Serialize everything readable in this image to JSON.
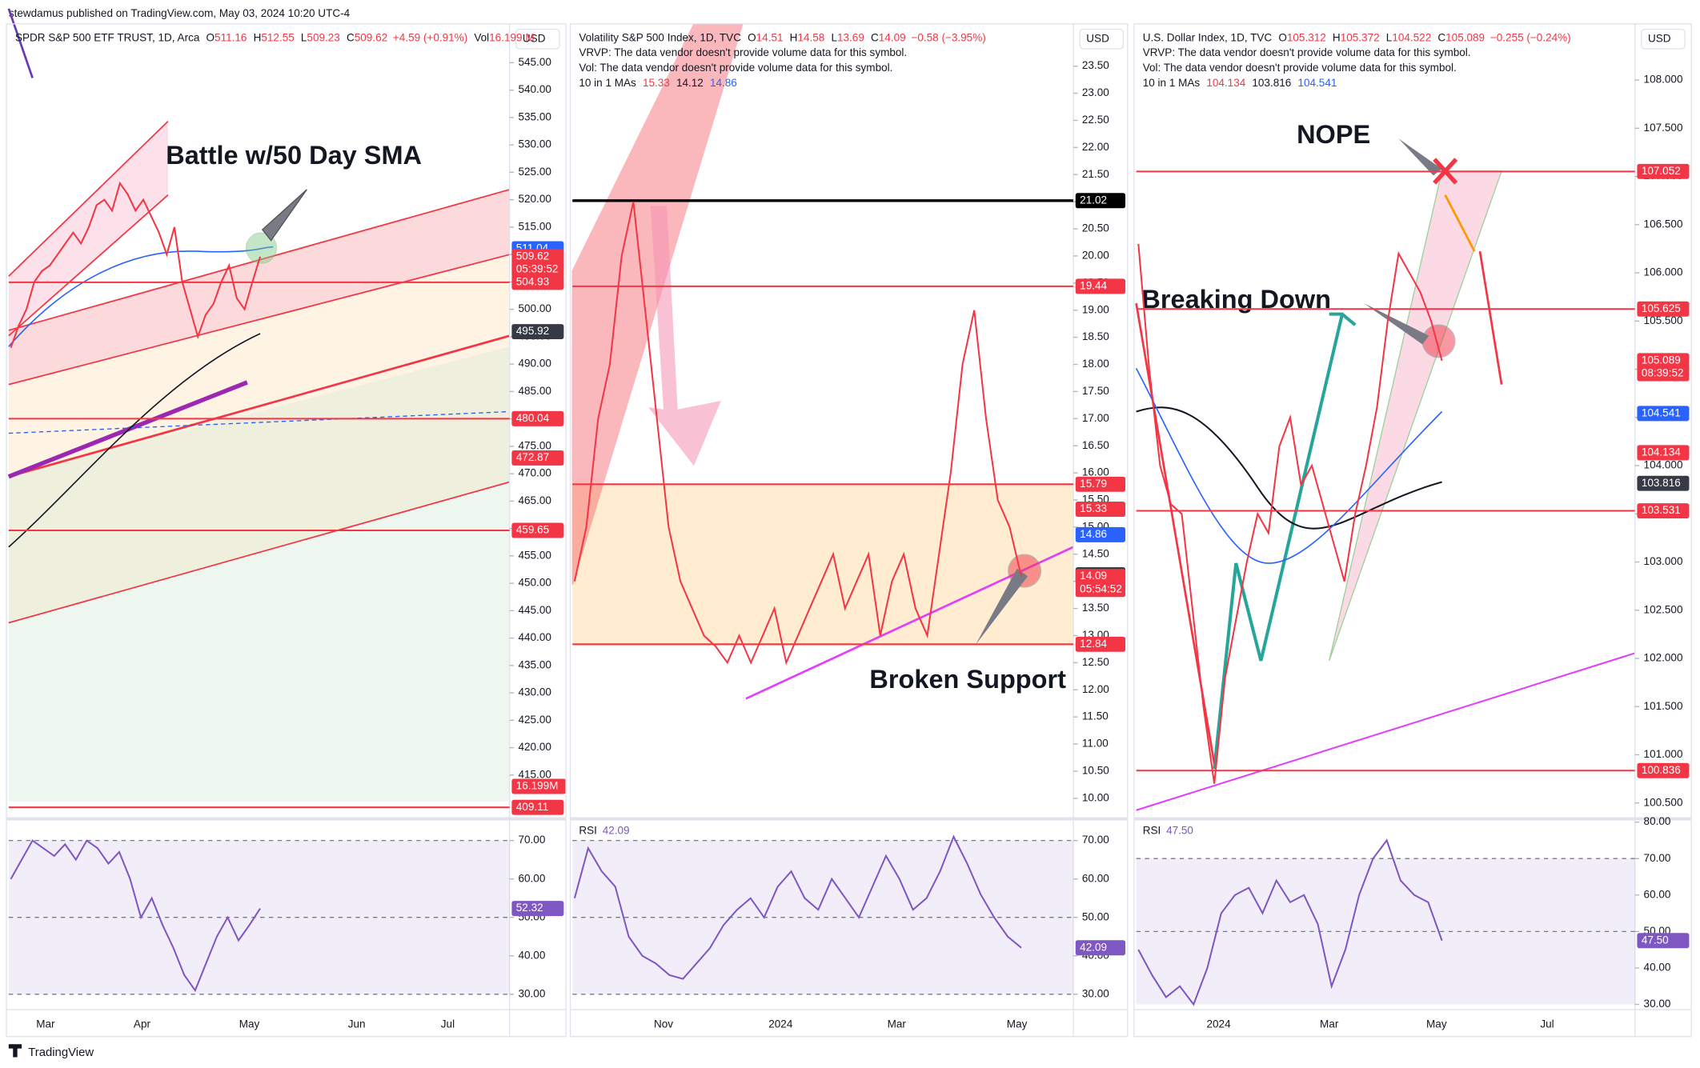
{
  "attribution": "stewdamus published on TradingView.com, May 03, 2024 10:20 UTC-4",
  "brand": "TradingView",
  "chart_data": [
    {
      "type": "line",
      "title": "SPDR S&P 500 ETF TRUST, 1D, Arca",
      "currency": "USD",
      "ohlc": [
        {
          "key": "O",
          "text": "511.16"
        },
        {
          "key": "H",
          "text": "512.55"
        },
        {
          "key": "L",
          "text": "509.23"
        },
        {
          "key": "C",
          "text": "509.62"
        }
      ],
      "change": "+4.59 (+0.91%)",
      "volume_key": "Vol",
      "volume": "16.199 M",
      "volume_tag": "16.199M",
      "annotations": [
        "Battle w/50 Day SMA"
      ],
      "color": "#f23645",
      "values": [
        493,
        497,
        500,
        505,
        507,
        508,
        510,
        512,
        514,
        512,
        515,
        519,
        520,
        518,
        523,
        521,
        518,
        520,
        517,
        514,
        510,
        515,
        505,
        500,
        495,
        499,
        501,
        505,
        508,
        502,
        500,
        505,
        509.62
      ],
      "ylim": [
        407.8,
        551.5
      ],
      "yticks": [
        {
          "value": 545,
          "label": "545.00"
        },
        {
          "value": 540,
          "label": "540.00"
        },
        {
          "value": 535,
          "label": "535.00"
        },
        {
          "value": 530,
          "label": "530.00"
        },
        {
          "value": 525,
          "label": "525.00"
        },
        {
          "value": 520,
          "label": "520.00"
        },
        {
          "value": 515,
          "label": "515.00"
        },
        {
          "value": 510,
          "label": "510.00"
        },
        {
          "value": 505,
          "label": "505.00"
        },
        {
          "value": 500,
          "label": "500.00"
        },
        {
          "value": 495,
          "label": "495.00"
        },
        {
          "value": 490,
          "label": "490.00"
        },
        {
          "value": 485,
          "label": "485.00"
        },
        {
          "value": 480,
          "label": "480.00"
        },
        {
          "value": 475,
          "label": "475.00"
        },
        {
          "value": 470,
          "label": "470.00"
        },
        {
          "value": 465,
          "label": "465.00"
        },
        {
          "value": 460,
          "label": "460.00"
        },
        {
          "value": 455,
          "label": "455.00"
        },
        {
          "value": 450,
          "label": "450.00"
        },
        {
          "value": 445,
          "label": "445.00"
        },
        {
          "value": 440,
          "label": "440.00"
        },
        {
          "value": 435,
          "label": "435.00"
        },
        {
          "value": 430,
          "label": "430.00"
        },
        {
          "value": 425,
          "label": "425.00"
        },
        {
          "value": 420,
          "label": "420.00"
        },
        {
          "value": 415,
          "label": "415.00"
        }
      ],
      "hlines": [
        {
          "value": 504.93,
          "color": "#f23645"
        },
        {
          "value": 480.04,
          "color": "#f23645"
        },
        {
          "value": 459.65,
          "color": "#f23645"
        },
        {
          "value": 409.11,
          "color": "#f23645"
        }
      ],
      "price_tags": [
        {
          "value": 511.04,
          "color": "#2962ff"
        },
        {
          "value": 509.62,
          "color": "#f23645",
          "countdown": "05:39:52"
        },
        {
          "value": 504.93,
          "color": "#f23645"
        },
        {
          "value": 495.92,
          "color": "#363a45"
        },
        {
          "value": 480.04,
          "color": "#f23645"
        },
        {
          "value": 472.87,
          "color": "#f23645"
        },
        {
          "value": 459.65,
          "color": "#f23645"
        },
        {
          "value": 409.11,
          "color": "#f23645"
        }
      ],
      "xtick_labels": [
        "Mar",
        "Apr",
        "May",
        "Jun",
        "Jul"
      ],
      "rsi": {
        "color": "#7e57c2",
        "values": [
          60,
          65,
          70,
          68,
          66,
          69,
          65,
          70,
          68,
          64,
          67,
          60,
          50,
          55,
          48,
          42,
          35,
          31,
          38,
          45,
          50,
          44,
          48,
          52.32
        ],
        "ylim": [
          26.6,
          74.5
        ],
        "yticks": [
          {
            "value": 70,
            "label": "70.00"
          },
          {
            "value": 60,
            "label": "60.00"
          },
          {
            "value": 50,
            "label": "50.00"
          },
          {
            "value": 40,
            "label": "40.00"
          },
          {
            "value": 30,
            "label": "30.00"
          }
        ],
        "levels": [
          70,
          50,
          30
        ],
        "tag": {
          "value": 52.32
        }
      }
    },
    {
      "type": "line",
      "title": "Volatility S&P 500 Index, 1D, TVC",
      "currency": "USD",
      "ohlc": [
        {
          "key": "O",
          "text": "14.51"
        },
        {
          "key": "H",
          "text": "14.58"
        },
        {
          "key": "L",
          "text": "13.69"
        },
        {
          "key": "C",
          "text": "14.09"
        }
      ],
      "change": "−0.58 (−3.95%)",
      "notes": [
        "VRVP: The data vendor doesn't provide volume data for this symbol.",
        "Vol: The data vendor doesn't provide volume data for this symbol."
      ],
      "ma_label": "10 in 1 MAs",
      "ma_values": [
        {
          "text": "15.33",
          "color": "#f23645"
        },
        {
          "text": "14.12",
          "color": "#131722"
        },
        {
          "text": "14.86",
          "color": "#2962ff"
        }
      ],
      "annotations": [
        "Broken Support"
      ],
      "color": "#f23645",
      "values": [
        14,
        15,
        17,
        18,
        20,
        21,
        19,
        17,
        15,
        14,
        13.5,
        13,
        12.8,
        12.5,
        13,
        12.5,
        13,
        13.5,
        12.5,
        13,
        13.5,
        14,
        14.5,
        13.5,
        14,
        14.5,
        13,
        14,
        14.5,
        13.5,
        13,
        14.5,
        16,
        18,
        19,
        17,
        15.5,
        15,
        14.09
      ],
      "ylim": [
        9.7,
        24.22
      ],
      "yticks": [
        {
          "value": 23.5,
          "label": "23.50"
        },
        {
          "value": 23,
          "label": "23.00"
        },
        {
          "value": 22.5,
          "label": "22.50"
        },
        {
          "value": 22,
          "label": "22.00"
        },
        {
          "value": 21.5,
          "label": "21.50"
        },
        {
          "value": 21,
          "label": "21.00"
        },
        {
          "value": 20.5,
          "label": "20.50"
        },
        {
          "value": 20,
          "label": "20.00"
        },
        {
          "value": 19.5,
          "label": "19.50"
        },
        {
          "value": 19,
          "label": "19.00"
        },
        {
          "value": 18.5,
          "label": "18.50"
        },
        {
          "value": 18,
          "label": "18.00"
        },
        {
          "value": 17.5,
          "label": "17.50"
        },
        {
          "value": 17,
          "label": "17.00"
        },
        {
          "value": 16.5,
          "label": "16.50"
        },
        {
          "value": 16,
          "label": "16.00"
        },
        {
          "value": 15.5,
          "label": "15.50"
        },
        {
          "value": 15,
          "label": "15.00"
        },
        {
          "value": 14.5,
          "label": "14.50"
        },
        {
          "value": 14,
          "label": "14.00"
        },
        {
          "value": 13.5,
          "label": "13.50"
        },
        {
          "value": 13,
          "label": "13.00"
        },
        {
          "value": 12.5,
          "label": "12.50"
        },
        {
          "value": 12,
          "label": "12.00"
        },
        {
          "value": 11.5,
          "label": "11.50"
        },
        {
          "value": 11,
          "label": "11.00"
        },
        {
          "value": 10.5,
          "label": "10.50"
        },
        {
          "value": 10,
          "label": "10.00"
        }
      ],
      "hlines": [
        {
          "value": 21.02,
          "color": "#000000"
        },
        {
          "value": 19.44,
          "color": "#f23645"
        },
        {
          "value": 15.79,
          "color": "#f23645"
        },
        {
          "value": 12.84,
          "color": "#f23645"
        }
      ],
      "price_tags": [
        {
          "value": 21.02,
          "color": "#000000"
        },
        {
          "value": 19.44,
          "color": "#f23645"
        },
        {
          "value": 15.79,
          "color": "#f23645"
        },
        {
          "value": 15.33,
          "color": "#f23645"
        },
        {
          "value": 14.86,
          "color": "#2962ff"
        },
        {
          "value": 14.12,
          "color": "#363a45"
        },
        {
          "value": 14.09,
          "color": "#f23645",
          "countdown": "05:54:52"
        },
        {
          "value": 12.84,
          "color": "#f23645"
        }
      ],
      "xtick_labels": [
        "Nov",
        "2024",
        "Mar",
        "May"
      ],
      "rsi": {
        "name": "RSI",
        "color": "#7e57c2",
        "values": [
          55,
          68,
          62,
          58,
          45,
          40,
          38,
          35,
          34,
          38,
          42,
          48,
          52,
          55,
          50,
          58,
          62,
          55,
          52,
          60,
          55,
          50,
          58,
          66,
          60,
          52,
          55,
          62,
          71,
          64,
          56,
          50,
          45,
          42.09
        ],
        "ylim": [
          26.6,
          74.5
        ],
        "yticks": [
          {
            "value": 70,
            "label": "70.00"
          },
          {
            "value": 60,
            "label": "60.00"
          },
          {
            "value": 50,
            "label": "50.00"
          },
          {
            "value": 40,
            "label": "40.00"
          },
          {
            "value": 30,
            "label": "30.00"
          }
        ],
        "levels": [
          70,
          50,
          30
        ],
        "tag": {
          "value": 42.09
        }
      }
    },
    {
      "type": "line",
      "title": "U.S. Dollar Index, 1D, TVC",
      "currency": "USD",
      "ohlc": [
        {
          "key": "O",
          "text": "105.312"
        },
        {
          "key": "H",
          "text": "105.372"
        },
        {
          "key": "L",
          "text": "104.522"
        },
        {
          "key": "C",
          "text": "105.089"
        }
      ],
      "change": "−0.255 (−0.24%)",
      "notes": [
        "VRVP: The data vendor doesn't provide volume data for this symbol.",
        "Vol: The data vendor doesn't provide volume data for this symbol."
      ],
      "ma_label": "10 in 1 MAs",
      "ma_values": [
        {
          "text": "104.134",
          "color": "#f23645"
        },
        {
          "text": "103.816",
          "color": "#131722"
        },
        {
          "text": "104.541",
          "color": "#2962ff"
        }
      ],
      "annotations": [
        "NOPE",
        "Breaking Down"
      ],
      "color": "#f23645",
      "values": [
        106.3,
        105,
        104,
        103.6,
        103.5,
        102.5,
        101.5,
        100.7,
        101.8,
        102.4,
        103,
        103.5,
        103.3,
        104.2,
        104.5,
        103.8,
        104,
        103.6,
        103.2,
        102.8,
        103.5,
        104,
        104.6,
        105.5,
        106.2,
        106,
        105.8,
        105.5,
        105.089
      ],
      "ylim": [
        100.38,
        108.55
      ],
      "yticks": [
        {
          "value": 108,
          "label": "108.000"
        },
        {
          "value": 107.5,
          "label": "107.500"
        },
        {
          "value": 107,
          "label": "107.000"
        },
        {
          "value": 106.5,
          "label": "106.500"
        },
        {
          "value": 106,
          "label": "106.000"
        },
        {
          "value": 105.5,
          "label": "105.500"
        },
        {
          "value": 105,
          "label": "105.000"
        },
        {
          "value": 104.5,
          "label": "104.500"
        },
        {
          "value": 104,
          "label": "104.000"
        },
        {
          "value": 103.5,
          "label": "103.500"
        },
        {
          "value": 103,
          "label": "103.000"
        },
        {
          "value": 102.5,
          "label": "102.500"
        },
        {
          "value": 102,
          "label": "102.000"
        },
        {
          "value": 101.5,
          "label": "101.500"
        },
        {
          "value": 101,
          "label": "101.000"
        },
        {
          "value": 100.5,
          "label": "100.500"
        }
      ],
      "hlines": [
        {
          "value": 107.052,
          "color": "#f23645"
        },
        {
          "value": 105.625,
          "color": "#f23645"
        },
        {
          "value": 103.531,
          "color": "#f23645"
        },
        {
          "value": 100.836,
          "color": "#f23645"
        }
      ],
      "price_tags": [
        {
          "value": 107.052,
          "color": "#f23645"
        },
        {
          "value": 105.625,
          "color": "#f23645"
        },
        {
          "value": 105.089,
          "color": "#f23645",
          "countdown": "08:39:52"
        },
        {
          "value": 104.541,
          "color": "#2962ff"
        },
        {
          "value": 104.134,
          "color": "#f23645"
        },
        {
          "value": 103.816,
          "color": "#363a45"
        },
        {
          "value": 103.531,
          "color": "#f23645"
        },
        {
          "value": 100.836,
          "color": "#f23645"
        }
      ],
      "xtick_labels": [
        "2024",
        "Mar",
        "May",
        "Jul"
      ],
      "rsi": {
        "name": "RSI",
        "color": "#7e57c2",
        "values": [
          45,
          38,
          32,
          35,
          30,
          40,
          55,
          60,
          62,
          55,
          64,
          58,
          60,
          52,
          35,
          45,
          60,
          70,
          75,
          64,
          60,
          58,
          47.5
        ],
        "ylim": [
          29.2,
          79.7
        ],
        "yticks": [
          {
            "value": 80,
            "label": "80.00"
          },
          {
            "value": 70,
            "label": "70.00"
          },
          {
            "value": 60,
            "label": "60.00"
          },
          {
            "value": 50,
            "label": "50.00"
          },
          {
            "value": 40,
            "label": "40.00"
          },
          {
            "value": 30,
            "label": "30.00"
          }
        ],
        "levels": [
          70,
          50
        ],
        "tag": {
          "value": 47.5,
          "label": "47.50"
        }
      }
    }
  ]
}
